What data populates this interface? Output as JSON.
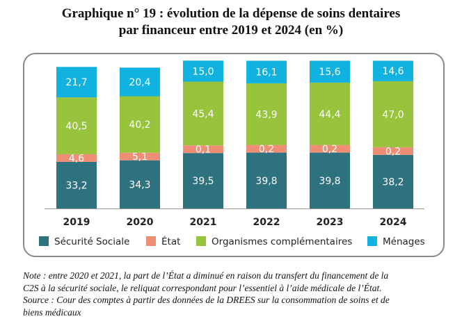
{
  "title_line1": "Graphique n° 19 : évolution de la dépense de soins dentaires",
  "title_line2": "par financeur entre 2019 et 2024 (en %)",
  "chart_data": {
    "type": "bar",
    "stacked": true,
    "categories": [
      "2019",
      "2020",
      "2021",
      "2022",
      "2023",
      "2024"
    ],
    "series": [
      {
        "name": "Sécurité Sociale",
        "color": "#2e7280",
        "values": [
          33.2,
          34.3,
          39.5,
          39.8,
          39.8,
          38.2
        ],
        "labels": [
          "33,2",
          "34,3",
          "39,5",
          "39,8",
          "39,8",
          "38,2"
        ]
      },
      {
        "name": "État",
        "color": "#ee8e75",
        "values": [
          4.6,
          5.1,
          0.1,
          0.2,
          0.2,
          0.2
        ],
        "labels": [
          "4,6",
          "5,1",
          "0,1",
          "0,2",
          "0,2",
          "0,2"
        ]
      },
      {
        "name": "Organismes complémentaires",
        "color": "#97c33d",
        "values": [
          40.5,
          40.2,
          45.4,
          43.9,
          44.4,
          47.0
        ],
        "labels": [
          "40,5",
          "40,2",
          "45,4",
          "43,9",
          "44,4",
          "47,0"
        ]
      },
      {
        "name": "Ménages",
        "color": "#12b2e0",
        "values": [
          21.7,
          20.4,
          15.0,
          16.1,
          15.6,
          14.6
        ],
        "labels": [
          "21,7",
          "20,4",
          "15,0",
          "16,1",
          "15,6",
          "14,6"
        ]
      }
    ],
    "ylim": [
      0,
      100
    ],
    "grid": false,
    "legend_position": "bottom"
  },
  "notes": {
    "line1": "Note : entre 2020 et 2021, la part de l’État a diminué en raison du transfert du financement de la",
    "line2": "C2S à la sécurité sociale, le reliquat correspondant pour l’essentiel à l’aide médicale de l’État.",
    "line3": "Source : Cour des comptes à partir des données de la DREES sur la consommation de soins et de",
    "line4": "biens médicaux"
  }
}
